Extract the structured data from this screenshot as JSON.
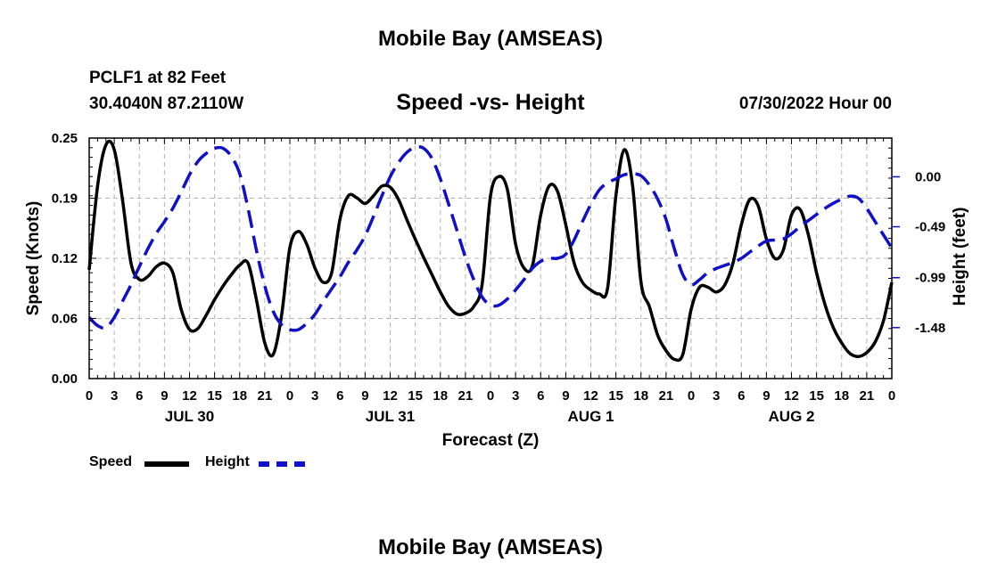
{
  "chart_data": {
    "type": "line",
    "title": "Mobile Bay (AMSEAS)",
    "subtitle": "Speed -vs- Height",
    "station": "PCLF1 at 82 Feet",
    "coordinates": "30.4040N  87.2110W",
    "run_time": "07/30/2022 Hour 00",
    "xlabel": "Forecast (Z)",
    "ylabel": "Speed (Knots)",
    "ylabel_right": "Height (feet)",
    "x_hours": [
      0,
      96
    ],
    "x_tick_labels": [
      "0",
      "3",
      "6",
      "9",
      "12",
      "15",
      "18",
      "21",
      "0",
      "3",
      "6",
      "9",
      "12",
      "15",
      "18",
      "21",
      "0",
      "3",
      "6",
      "9",
      "12",
      "15",
      "18",
      "21",
      "0",
      "3",
      "6",
      "9",
      "12",
      "15",
      "18",
      "21",
      "0"
    ],
    "date_labels": [
      {
        "label": "JUL 30",
        "hour": 12
      },
      {
        "label": "JUL 31",
        "hour": 36
      },
      {
        "label": "AUG 1",
        "hour": 60
      },
      {
        "label": "AUG 2",
        "hour": 84
      }
    ],
    "ylim": [
      0,
      0.25
    ],
    "y_ticks": [
      "0.00",
      "0.06",
      "0.12",
      "0.19",
      "0.25"
    ],
    "ylim_right": [
      -1.98,
      0.38
    ],
    "y_ticks_right": [
      "-1.48",
      "-0.99",
      "-0.49",
      "0.00"
    ],
    "grid": true,
    "legend_position": "bottom-left",
    "series": [
      {
        "name": "Speed",
        "axis": "left",
        "color": "#000000",
        "style": "solid",
        "points": [
          [
            0,
            0.113
          ],
          [
            1,
            0.2
          ],
          [
            2,
            0.243
          ],
          [
            3,
            0.238
          ],
          [
            4,
            0.185
          ],
          [
            5,
            0.12
          ],
          [
            6,
            0.103
          ],
          [
            7,
            0.106
          ],
          [
            8,
            0.116
          ],
          [
            9,
            0.12
          ],
          [
            10,
            0.11
          ],
          [
            11,
            0.072
          ],
          [
            12,
            0.051
          ],
          [
            13,
            0.052
          ],
          [
            14,
            0.066
          ],
          [
            15,
            0.082
          ],
          [
            16,
            0.096
          ],
          [
            17,
            0.108
          ],
          [
            18,
            0.118
          ],
          [
            19,
            0.12
          ],
          [
            20,
            0.082
          ],
          [
            21,
            0.037
          ],
          [
            22,
            0.025
          ],
          [
            23,
            0.065
          ],
          [
            24,
            0.136
          ],
          [
            25,
            0.153
          ],
          [
            26,
            0.14
          ],
          [
            27,
            0.115
          ],
          [
            28,
            0.1
          ],
          [
            29,
            0.11
          ],
          [
            30,
            0.166
          ],
          [
            31,
            0.19
          ],
          [
            32,
            0.188
          ],
          [
            33,
            0.182
          ],
          [
            34,
            0.19
          ],
          [
            35,
            0.2
          ],
          [
            36,
            0.199
          ],
          [
            37,
            0.186
          ],
          [
            38,
            0.165
          ],
          [
            39,
            0.145
          ],
          [
            40,
            0.126
          ],
          [
            41,
            0.108
          ],
          [
            42,
            0.09
          ],
          [
            43,
            0.075
          ],
          [
            44,
            0.067
          ],
          [
            45,
            0.068
          ],
          [
            46,
            0.075
          ],
          [
            47,
            0.098
          ],
          [
            48,
            0.19
          ],
          [
            49,
            0.21
          ],
          [
            50,
            0.197
          ],
          [
            51,
            0.14
          ],
          [
            52,
            0.115
          ],
          [
            53,
            0.117
          ],
          [
            54,
            0.17
          ],
          [
            55,
            0.2
          ],
          [
            56,
            0.195
          ],
          [
            57,
            0.16
          ],
          [
            58,
            0.12
          ],
          [
            59,
            0.1
          ],
          [
            60,
            0.092
          ],
          [
            61,
            0.088
          ],
          [
            62,
            0.094
          ],
          [
            63,
            0.19
          ],
          [
            64,
            0.238
          ],
          [
            65,
            0.2
          ],
          [
            66,
            0.1
          ],
          [
            67,
            0.075
          ],
          [
            68,
            0.045
          ],
          [
            69,
            0.029
          ],
          [
            70,
            0.02
          ],
          [
            71,
            0.025
          ],
          [
            72,
            0.072
          ],
          [
            73,
            0.095
          ],
          [
            74,
            0.095
          ],
          [
            75,
            0.09
          ],
          [
            76,
            0.097
          ],
          [
            77,
            0.12
          ],
          [
            78,
            0.16
          ],
          [
            79,
            0.186
          ],
          [
            80,
            0.18
          ],
          [
            81,
            0.145
          ],
          [
            82,
            0.125
          ],
          [
            83,
            0.133
          ],
          [
            84,
            0.17
          ],
          [
            85,
            0.176
          ],
          [
            86,
            0.15
          ],
          [
            87,
            0.11
          ],
          [
            88,
            0.077
          ],
          [
            89,
            0.053
          ],
          [
            90,
            0.037
          ],
          [
            91,
            0.026
          ],
          [
            92,
            0.023
          ],
          [
            93,
            0.027
          ],
          [
            94,
            0.038
          ],
          [
            95,
            0.06
          ],
          [
            96,
            0.1
          ]
        ]
      },
      {
        "name": "Height",
        "axis": "right",
        "color": "#1010c8",
        "style": "dashed",
        "points": [
          [
            0,
            -1.38
          ],
          [
            1,
            -1.46
          ],
          [
            2,
            -1.48
          ],
          [
            3,
            -1.38
          ],
          [
            4,
            -1.22
          ],
          [
            5,
            -1.06
          ],
          [
            6,
            -0.88
          ],
          [
            7,
            -0.71
          ],
          [
            8,
            -0.56
          ],
          [
            9,
            -0.44
          ],
          [
            10,
            -0.31
          ],
          [
            11,
            -0.15
          ],
          [
            12,
            0.02
          ],
          [
            13,
            0.15
          ],
          [
            14,
            0.23
          ],
          [
            15,
            0.28
          ],
          [
            16,
            0.28
          ],
          [
            17,
            0.2
          ],
          [
            18,
            0.03
          ],
          [
            19,
            -0.31
          ],
          [
            20,
            -0.72
          ],
          [
            21,
            -1.07
          ],
          [
            22,
            -1.32
          ],
          [
            23,
            -1.45
          ],
          [
            24,
            -1.5
          ],
          [
            25,
            -1.5
          ],
          [
            26,
            -1.44
          ],
          [
            27,
            -1.35
          ],
          [
            28,
            -1.22
          ],
          [
            29,
            -1.1
          ],
          [
            30,
            -0.98
          ],
          [
            31,
            -0.84
          ],
          [
            32,
            -0.72
          ],
          [
            33,
            -0.58
          ],
          [
            34,
            -0.39
          ],
          [
            35,
            -0.19
          ],
          [
            36,
            0.0
          ],
          [
            37,
            0.14
          ],
          [
            38,
            0.24
          ],
          [
            39,
            0.29
          ],
          [
            40,
            0.28
          ],
          [
            41,
            0.18
          ],
          [
            42,
            -0.02
          ],
          [
            43,
            -0.27
          ],
          [
            44,
            -0.53
          ],
          [
            45,
            -0.79
          ],
          [
            46,
            -1.01
          ],
          [
            47,
            -1.18
          ],
          [
            48,
            -1.26
          ],
          [
            49,
            -1.26
          ],
          [
            50,
            -1.2
          ],
          [
            51,
            -1.11
          ],
          [
            52,
            -1.01
          ],
          [
            53,
            -0.9
          ],
          [
            54,
            -0.83
          ],
          [
            55,
            -0.8
          ],
          [
            56,
            -0.8
          ],
          [
            57,
            -0.76
          ],
          [
            58,
            -0.62
          ],
          [
            59,
            -0.44
          ],
          [
            60,
            -0.27
          ],
          [
            61,
            -0.13
          ],
          [
            62,
            -0.06
          ],
          [
            63,
            -0.02
          ],
          [
            64,
            0.02
          ],
          [
            65,
            0.03
          ],
          [
            66,
            0.01
          ],
          [
            67,
            -0.08
          ],
          [
            68,
            -0.22
          ],
          [
            69,
            -0.42
          ],
          [
            70,
            -0.71
          ],
          [
            71,
            -0.96
          ],
          [
            72,
            -1.06
          ],
          [
            73,
            -1.01
          ],
          [
            74,
            -0.94
          ],
          [
            75,
            -0.9
          ],
          [
            76,
            -0.87
          ],
          [
            77,
            -0.84
          ],
          [
            78,
            -0.8
          ],
          [
            79,
            -0.74
          ],
          [
            80,
            -0.68
          ],
          [
            81,
            -0.63
          ],
          [
            82,
            -0.62
          ],
          [
            83,
            -0.61
          ],
          [
            84,
            -0.56
          ],
          [
            85,
            -0.49
          ],
          [
            86,
            -0.43
          ],
          [
            87,
            -0.37
          ],
          [
            88,
            -0.31
          ],
          [
            89,
            -0.26
          ],
          [
            90,
            -0.22
          ],
          [
            91,
            -0.19
          ],
          [
            92,
            -0.21
          ],
          [
            93,
            -0.31
          ],
          [
            94,
            -0.44
          ],
          [
            95,
            -0.57
          ],
          [
            96,
            -0.7
          ]
        ]
      }
    ]
  },
  "legend": {
    "speed_label": "Speed",
    "height_label": "Height"
  },
  "bottom_title": "Mobile Bay (AMSEAS)"
}
